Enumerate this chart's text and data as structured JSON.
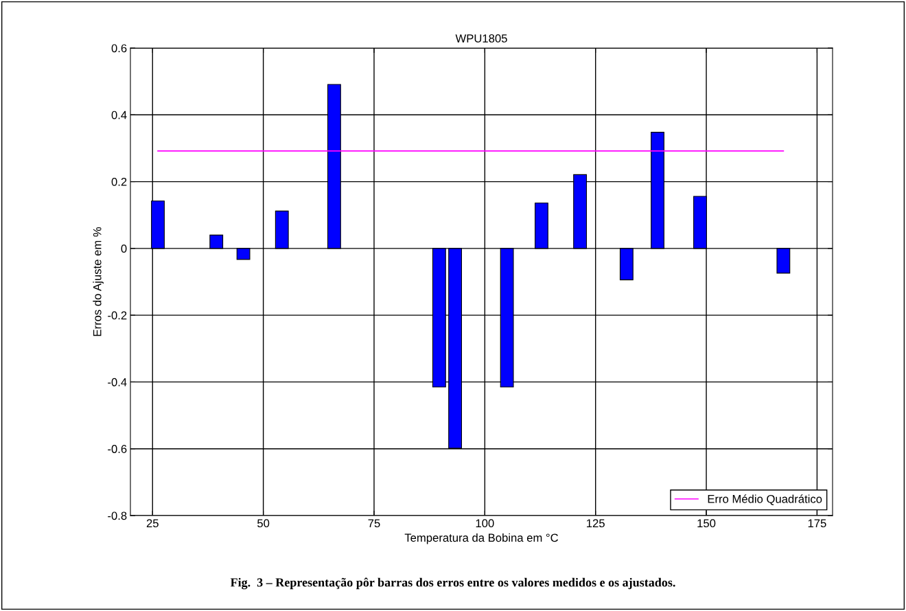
{
  "chart_data": {
    "type": "bar",
    "title": "WPU1805",
    "xlabel": "Temperatura da Bobina em °C",
    "ylabel": "Erros do Ajuste em %",
    "x": [
      26.2,
      39.4,
      45.5,
      54.2,
      66.0,
      89.7,
      93.3,
      105.0,
      112.8,
      121.5,
      132.0,
      139.0,
      148.6,
      167.4
    ],
    "series": [
      {
        "color": "#0000ff",
        "values": [
          0.142,
          0.04,
          -0.033,
          0.112,
          0.491,
          -0.415,
          -0.598,
          -0.415,
          0.136,
          0.221,
          -0.094,
          0.348,
          0.156,
          -0.074
        ]
      },
      {
        "type": "line",
        "name": "Erro Médio Quadrático",
        "color": "#ff00ff",
        "x": [
          26.2,
          167.4
        ],
        "values": [
          0.292,
          0.292
        ]
      }
    ],
    "xlim": [
      20,
      178.5
    ],
    "xticks": [
      25,
      50,
      75,
      100,
      125,
      150,
      175
    ],
    "ylim": [
      -0.8,
      0.6
    ],
    "yticks": [
      -0.8,
      -0.6,
      -0.4,
      -0.2,
      0,
      0.2,
      0.4,
      0.6
    ],
    "grid": true,
    "legend": "bottom right",
    "annotations": [
      "Fig.  3 – Representação pôr barras dos erros entre os valores medidos e os ajustados."
    ]
  }
}
